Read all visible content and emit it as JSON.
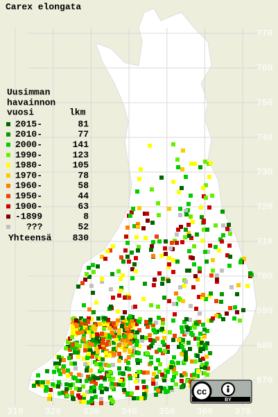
{
  "title": "Carex elongata",
  "legend": {
    "heading": [
      "Uusimman",
      "havainnon",
      "vuosi"
    ],
    "count_heading": "lkm",
    "rows": [
      {
        "label": "2015-",
        "count": 81,
        "color": "#006400"
      },
      {
        "label": "2010-",
        "count": 77,
        "color": "#009900"
      },
      {
        "label": "2000-",
        "count": 141,
        "color": "#00cc00"
      },
      {
        "label": "1990-",
        "count": 123,
        "color": "#66ee00"
      },
      {
        "label": "1980-",
        "count": 105,
        "color": "#ffff00"
      },
      {
        "label": "1970-",
        "count": 78,
        "color": "#ffc800"
      },
      {
        "label": "1960-",
        "count": 58,
        "color": "#ff8000"
      },
      {
        "label": "1950-",
        "count": 44,
        "color": "#f04000"
      },
      {
        "label": "1900-",
        "count": 63,
        "color": "#cc0000"
      },
      {
        "label": "-1899",
        "count": 8,
        "color": "#800000"
      },
      {
        "label": "???",
        "count": 52,
        "color": "#c0c0c0"
      }
    ],
    "total_label": "Yhteensä",
    "total": 830
  },
  "grid": {
    "northing": [
      770,
      760,
      750,
      740,
      730,
      720,
      710,
      700,
      690,
      680,
      670
    ],
    "easting": [
      310,
      320,
      330,
      340,
      350,
      360,
      370
    ]
  },
  "license": {
    "cc": "cc",
    "by": "BY"
  }
}
